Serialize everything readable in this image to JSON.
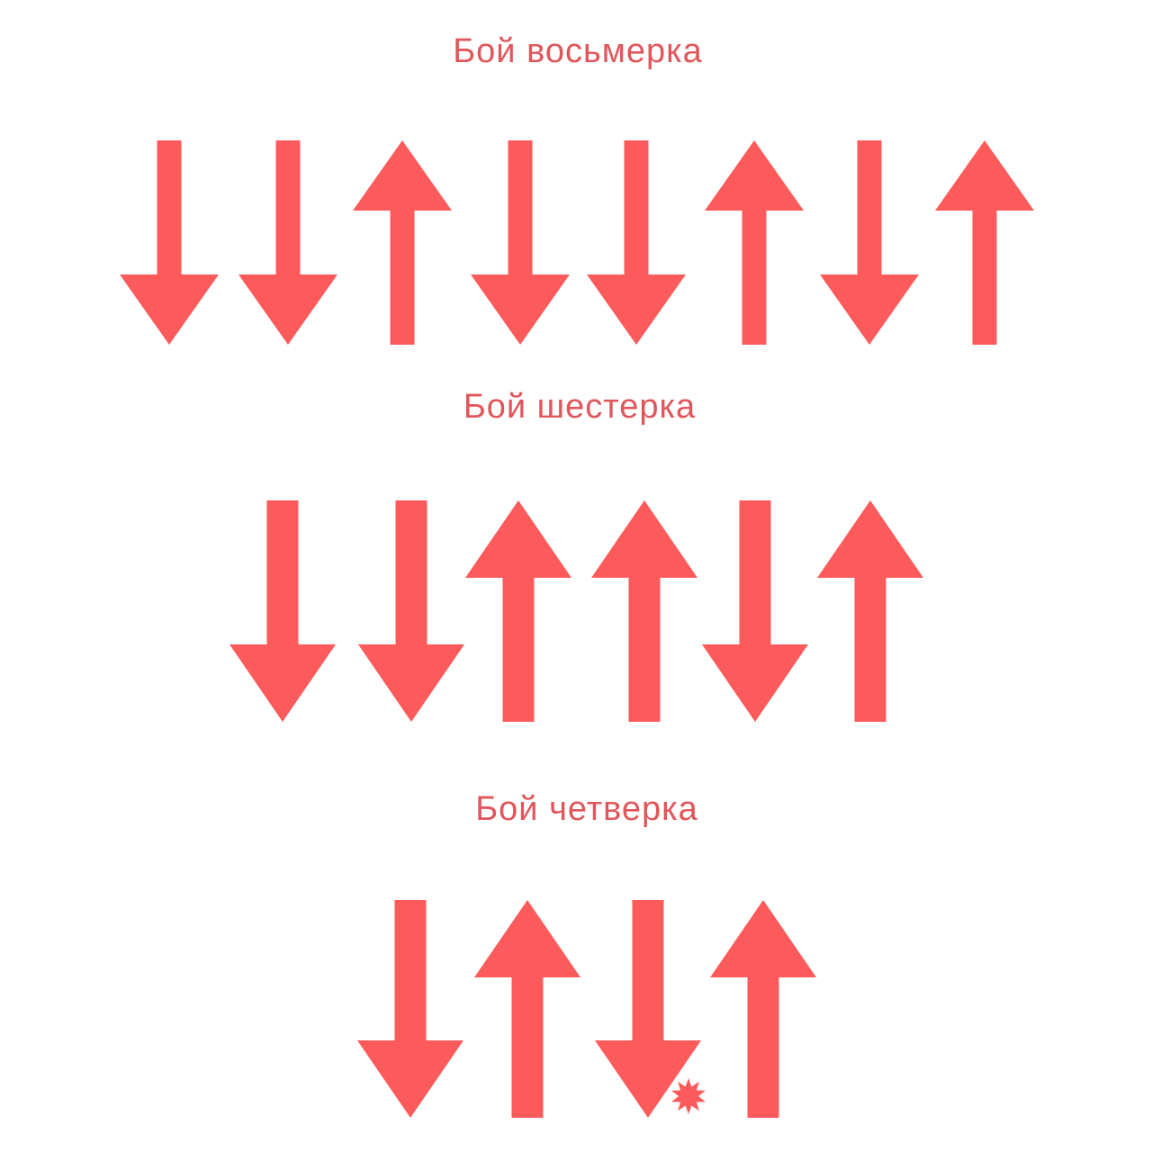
{
  "colors": {
    "arrow": "#fd5a5b",
    "title": "#e0565a",
    "background": "#ffffff"
  },
  "patterns": [
    {
      "title": "Бой восьмерка",
      "strokes": [
        "down",
        "down",
        "up",
        "down",
        "down",
        "up",
        "down",
        "up"
      ]
    },
    {
      "title": "Бой шестерка",
      "strokes": [
        "down",
        "down",
        "up",
        "up",
        "down",
        "up"
      ]
    },
    {
      "title": "Бой четверка",
      "strokes": [
        "down",
        "up",
        "down",
        "up"
      ],
      "accent_after_stroke": 3,
      "accent_icon": "star-burst-icon"
    }
  ]
}
